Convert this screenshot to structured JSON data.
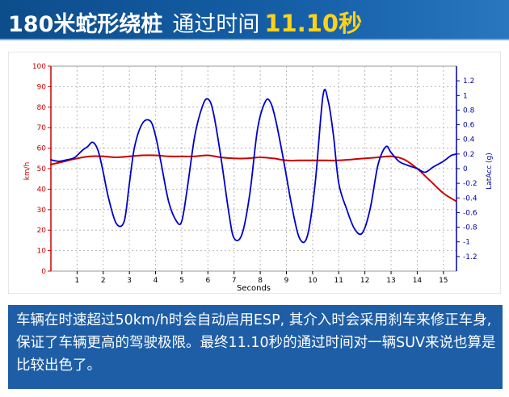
{
  "header": {
    "title_main": "180米蛇形绕桩",
    "title_mid": "通过时间",
    "title_time": "11.10秒"
  },
  "caption": {
    "text": "车辆在时速超过50km/h时会自动启用ESP, 其介入时会采用刹车来修正车身, 保证了车辆更高的驾驶极限。最终11.10秒的通过时间对一辆SUV来说也算是比较出色了。"
  },
  "colors": {
    "header_bg": "#1560a8",
    "title_accent": "#ffd21a",
    "caption_bg": "#1e5ea6",
    "speed_series": "#cc0000",
    "latacc_series": "#0000cc",
    "left_axis": "#cc0000",
    "right_axis": "#0000aa"
  },
  "chart_data": {
    "type": "line",
    "xlabel": "Seconds",
    "xlim": [
      0,
      15.5
    ],
    "xticks": [
      1,
      2,
      3,
      4,
      5,
      6,
      7,
      8,
      9,
      10,
      11,
      12,
      13,
      14,
      15
    ],
    "ylabel_left": "km/h",
    "ylim_left": [
      0,
      100
    ],
    "yticks_left": [
      0,
      10,
      20,
      30,
      40,
      50,
      60,
      70,
      80,
      90,
      100
    ],
    "ylabel_right": "LatAcc (g)",
    "ylim_right": [
      -1.4,
      1.4
    ],
    "yticks_right": [
      "1.2",
      "1",
      "0.8",
      "0.6",
      "0.4",
      "0.2",
      "0",
      "-0.2",
      "-0.4",
      "-0.6",
      "-0.8",
      "-1",
      "-1.2"
    ],
    "grid": true,
    "series": [
      {
        "axis": "left",
        "color": "#cc0000",
        "x": [
          0,
          0.5,
          1,
          1.5,
          2,
          2.5,
          3,
          3.5,
          4,
          4.5,
          5,
          5.5,
          6,
          6.5,
          7,
          7.5,
          8,
          8.5,
          9,
          9.5,
          10,
          10.5,
          11,
          11.5,
          12,
          12.5,
          13,
          13.5,
          14,
          14.5,
          15,
          15.5
        ],
        "values": [
          52,
          53.5,
          55,
          56,
          56,
          55.5,
          56,
          56.5,
          56.5,
          56,
          56,
          56,
          56.5,
          55.5,
          55,
          55,
          55.5,
          55,
          54,
          54,
          54,
          54,
          54,
          54.5,
          55,
          55.5,
          56,
          54.5,
          50,
          44,
          38,
          34
        ]
      },
      {
        "axis": "right",
        "color": "#0000cc",
        "x": [
          0,
          0.3,
          0.6,
          0.9,
          1.2,
          1.4,
          1.6,
          1.8,
          2.0,
          2.2,
          2.5,
          2.8,
          3.0,
          3.2,
          3.5,
          3.8,
          4.0,
          4.2,
          4.5,
          4.8,
          5.0,
          5.2,
          5.5,
          5.8,
          6.0,
          6.2,
          6.5,
          6.8,
          7.0,
          7.3,
          7.6,
          7.9,
          8.2,
          8.4,
          8.6,
          8.9,
          9.2,
          9.5,
          9.8,
          10.1,
          10.4,
          10.6,
          10.8,
          11.0,
          11.3,
          11.6,
          11.9,
          12.2,
          12.5,
          12.8,
          13.0,
          13.3,
          13.6,
          14.0,
          14.3,
          14.6,
          15.0,
          15.3,
          15.5
        ],
        "values": [
          0.12,
          0.1,
          0.12,
          0.15,
          0.25,
          0.3,
          0.36,
          0.25,
          -0.05,
          -0.4,
          -0.75,
          -0.72,
          -0.2,
          0.3,
          0.62,
          0.65,
          0.45,
          0.1,
          -0.45,
          -0.72,
          -0.72,
          -0.3,
          0.45,
          0.86,
          0.95,
          0.78,
          0.15,
          -0.6,
          -0.95,
          -0.9,
          -0.35,
          0.55,
          0.92,
          0.9,
          0.65,
          0.1,
          -0.5,
          -0.95,
          -0.92,
          -0.2,
          1.0,
          0.92,
          0.45,
          -0.2,
          -0.55,
          -0.82,
          -0.88,
          -0.55,
          0.05,
          0.3,
          0.22,
          0.1,
          0.05,
          0.0,
          -0.05,
          0.02,
          0.1,
          0.18,
          0.2
        ]
      }
    ]
  }
}
